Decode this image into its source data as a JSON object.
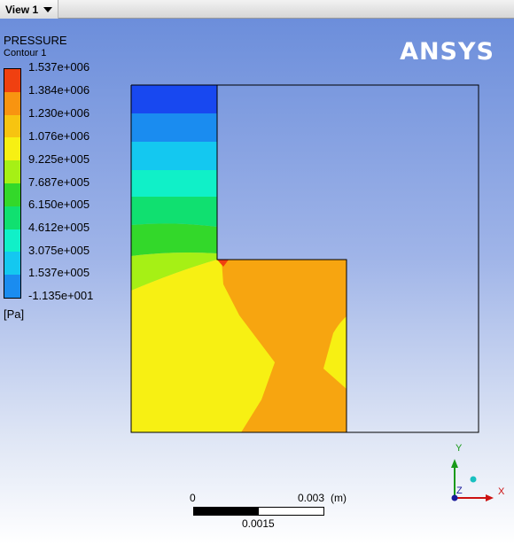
{
  "window": {
    "view_tab": "View 1"
  },
  "legend": {
    "title": "PRESSURE",
    "subtitle": "Contour 1",
    "units": "[Pa]",
    "labels": [
      "1.537e+006",
      "1.384e+006",
      "1.230e+006",
      "1.076e+006",
      "9.225e+005",
      "7.687e+005",
      "6.150e+005",
      "4.612e+005",
      "3.075e+005",
      "1.537e+005",
      "-1.135e+001"
    ],
    "colors": [
      "#f04010",
      "#f89410",
      "#f7c410",
      "#f7f013",
      "#a6f015",
      "#33d82a",
      "#10e070",
      "#10f0c8",
      "#14c8f0",
      "#1a8cf0",
      "#1848f0"
    ]
  },
  "brand": {
    "text": "ANSYS"
  },
  "scale": {
    "zero": "0",
    "max": "0.003",
    "unit": "(m)",
    "mid": "0.0015"
  },
  "axes": {
    "x": "X",
    "y": "Y",
    "z": "Z",
    "x_color": "#cc1111",
    "y_color": "#1a9a1a",
    "z_color": "#1a1a9a"
  },
  "contour_colors": {
    "c1": "#1848f0",
    "c2": "#1a8cf0",
    "c3": "#14c8f0",
    "c4": "#10f0c8",
    "c5": "#10e070",
    "c6": "#33d82a",
    "c7": "#a6f015",
    "c8": "#f7f013",
    "c9": "#f7a510",
    "peak": "#f04010"
  }
}
